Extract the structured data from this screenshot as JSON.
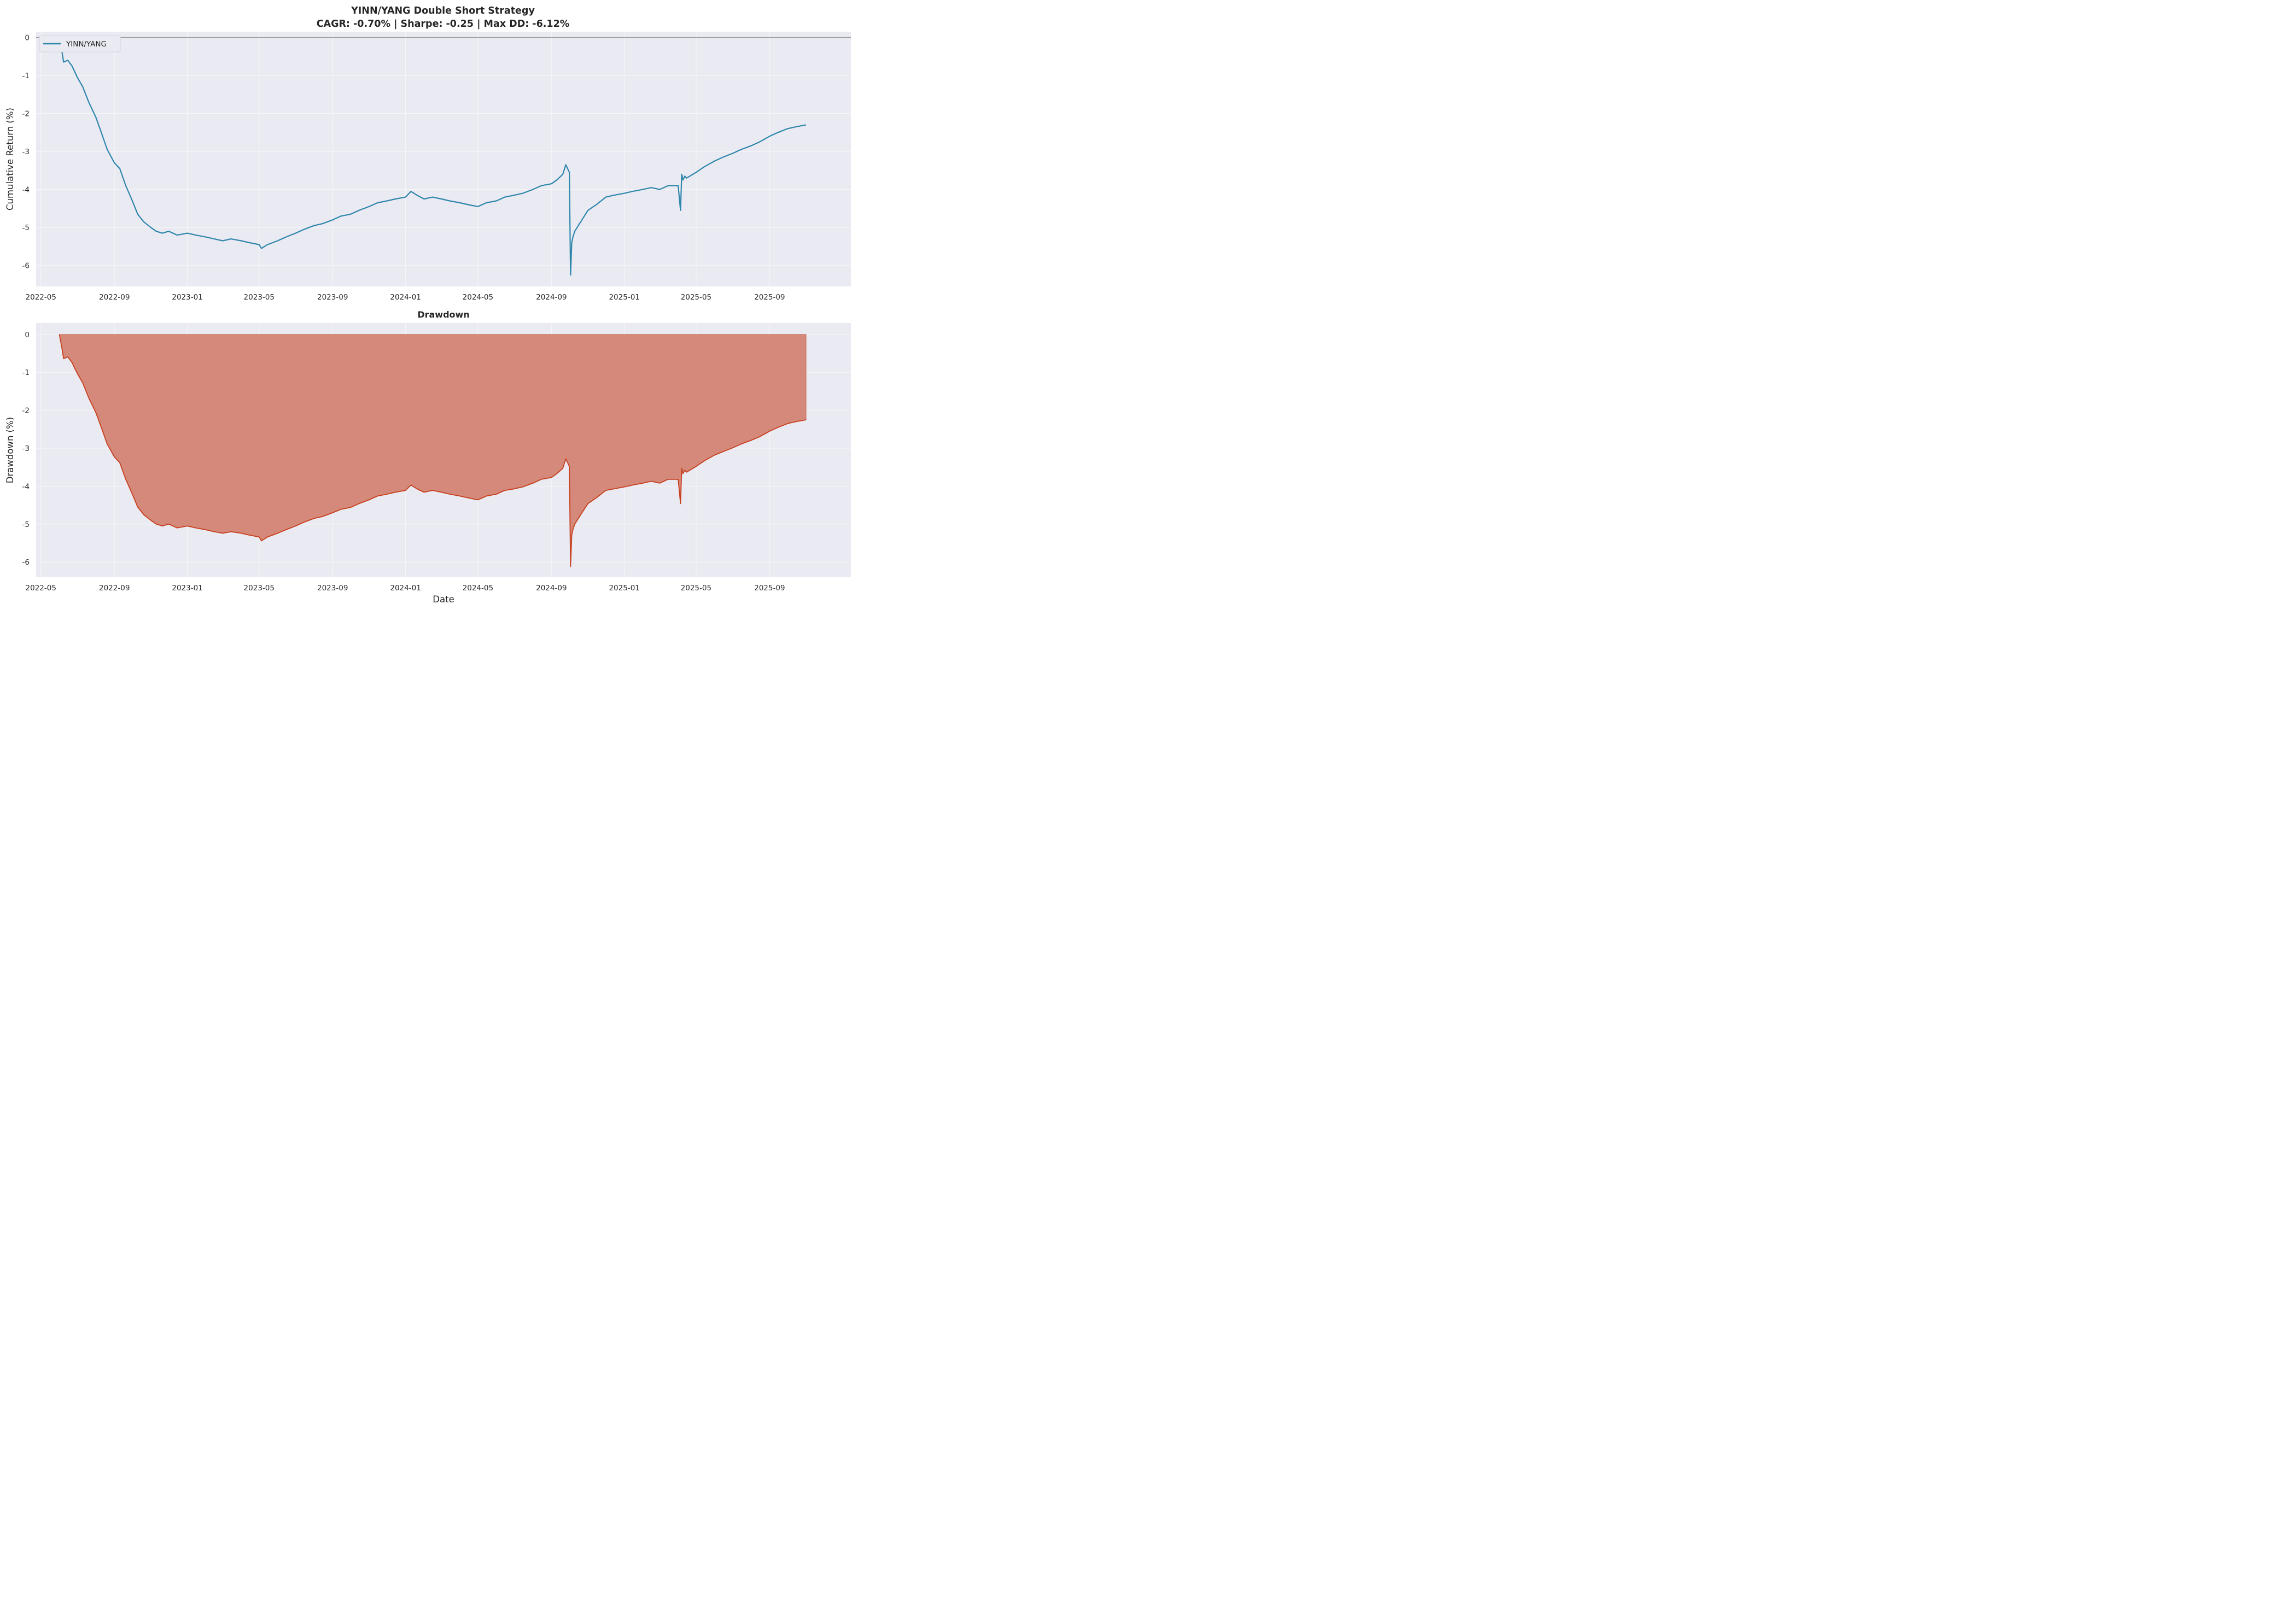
{
  "figure": {
    "title_line1": "YINN/YANG Double Short Strategy",
    "title_line2": "CAGR: -0.70% | Sharpe: -0.25 | Max DD: -6.12%"
  },
  "chart_data": [
    {
      "type": "line",
      "title": "",
      "xlabel": "",
      "ylabel": "Cumulative Return (%)",
      "ylim": [
        -6.55,
        0.15
      ],
      "xlim": [
        "2022-04-23",
        "2026-01-15"
      ],
      "x_ticks": [
        "2022-05",
        "2022-09",
        "2023-01",
        "2023-05",
        "2023-09",
        "2024-01",
        "2024-05",
        "2024-09",
        "2025-01",
        "2025-05",
        "2025-09"
      ],
      "y_ticks": [
        0,
        -1,
        -2,
        -3,
        -4,
        -5,
        -6
      ],
      "grid": true,
      "legend": {
        "position": "top-left",
        "entries": [
          "YINN/YANG"
        ]
      },
      "reference_line": 0,
      "color": "#2e86ab",
      "series": [
        {
          "name": "YINN/YANG",
          "x": [
            "2022-06-01",
            "2022-06-05",
            "2022-06-08",
            "2022-06-15",
            "2022-06-22",
            "2022-07-01",
            "2022-07-10",
            "2022-07-20",
            "2022-08-01",
            "2022-08-10",
            "2022-08-20",
            "2022-09-01",
            "2022-09-10",
            "2022-09-20",
            "2022-10-01",
            "2022-10-10",
            "2022-10-20",
            "2022-11-01",
            "2022-11-10",
            "2022-11-20",
            "2022-12-01",
            "2022-12-15",
            "2023-01-01",
            "2023-01-15",
            "2023-02-01",
            "2023-02-15",
            "2023-03-01",
            "2023-03-15",
            "2023-04-01",
            "2023-04-15",
            "2023-05-01",
            "2023-05-05",
            "2023-05-15",
            "2023-06-01",
            "2023-06-15",
            "2023-07-01",
            "2023-07-15",
            "2023-08-01",
            "2023-08-15",
            "2023-09-01",
            "2023-09-15",
            "2023-10-01",
            "2023-10-15",
            "2023-11-01",
            "2023-11-15",
            "2023-12-01",
            "2023-12-15",
            "2024-01-01",
            "2024-01-10",
            "2024-01-20",
            "2024-02-01",
            "2024-02-15",
            "2024-03-01",
            "2024-03-15",
            "2024-04-01",
            "2024-04-15",
            "2024-05-01",
            "2024-05-15",
            "2024-06-01",
            "2024-06-15",
            "2024-07-01",
            "2024-07-15",
            "2024-08-01",
            "2024-08-15",
            "2024-09-01",
            "2024-09-10",
            "2024-09-20",
            "2024-09-25",
            "2024-10-01",
            "2024-10-03",
            "2024-10-05",
            "2024-10-07",
            "2024-10-10",
            "2024-10-20",
            "2024-11-01",
            "2024-11-15",
            "2024-12-01",
            "2024-12-15",
            "2025-01-01",
            "2025-01-15",
            "2025-02-01",
            "2025-02-15",
            "2025-03-01",
            "2025-03-15",
            "2025-04-01",
            "2025-04-05",
            "2025-04-07",
            "2025-04-09",
            "2025-04-12",
            "2025-04-15",
            "2025-05-01",
            "2025-05-15",
            "2025-06-01",
            "2025-06-15",
            "2025-07-01",
            "2025-07-15",
            "2025-08-01",
            "2025-08-15",
            "2025-09-01",
            "2025-09-15",
            "2025-10-01",
            "2025-10-15",
            "2025-11-01"
          ],
          "y": [
            0.0,
            -0.35,
            -0.65,
            -0.6,
            -0.75,
            -1.05,
            -1.3,
            -1.7,
            -2.1,
            -2.5,
            -2.95,
            -3.3,
            -3.45,
            -3.9,
            -4.3,
            -4.65,
            -4.85,
            -5.0,
            -5.1,
            -5.15,
            -5.1,
            -5.2,
            -5.15,
            -5.2,
            -5.25,
            -5.3,
            -5.35,
            -5.3,
            -5.35,
            -5.4,
            -5.45,
            -5.55,
            -5.45,
            -5.35,
            -5.25,
            -5.15,
            -5.05,
            -4.95,
            -4.9,
            -4.8,
            -4.7,
            -4.65,
            -4.55,
            -4.45,
            -4.35,
            -4.3,
            -4.25,
            -4.2,
            -4.05,
            -4.15,
            -4.25,
            -4.2,
            -4.25,
            -4.3,
            -4.35,
            -4.4,
            -4.45,
            -4.35,
            -4.3,
            -4.2,
            -4.15,
            -4.1,
            -4.0,
            -3.9,
            -3.85,
            -3.75,
            -3.6,
            -3.35,
            -3.55,
            -6.25,
            -5.4,
            -5.25,
            -5.1,
            -4.85,
            -4.55,
            -4.4,
            -4.2,
            -4.15,
            -4.1,
            -4.05,
            -4.0,
            -3.95,
            -4.0,
            -3.9,
            -3.9,
            -4.55,
            -3.6,
            -3.75,
            -3.65,
            -3.7,
            -3.55,
            -3.4,
            -3.25,
            -3.15,
            -3.05,
            -2.95,
            -2.85,
            -2.75,
            -2.6,
            -2.5,
            -2.4,
            -2.35,
            -2.3
          ]
        }
      ]
    },
    {
      "type": "area",
      "title": "Drawdown",
      "xlabel": "Date",
      "ylabel": "Drawdown (%)",
      "ylim": [
        -6.4,
        0.3
      ],
      "xlim": [
        "2022-04-23",
        "2026-01-15"
      ],
      "x_ticks": [
        "2022-05",
        "2022-09",
        "2023-01",
        "2023-05",
        "2023-09",
        "2024-01",
        "2024-05",
        "2024-09",
        "2025-01",
        "2025-05",
        "2025-09"
      ],
      "y_ticks": [
        0,
        -1,
        -2,
        -3,
        -4,
        -5,
        -6
      ],
      "grid": true,
      "color": "#c73e1d",
      "fill_color": "#d4897a",
      "series": [
        {
          "name": "",
          "x": [
            "2022-06-01",
            "2022-06-05",
            "2022-06-08",
            "2022-06-15",
            "2022-06-22",
            "2022-07-01",
            "2022-07-10",
            "2022-07-20",
            "2022-08-01",
            "2022-08-10",
            "2022-08-20",
            "2022-09-01",
            "2022-09-10",
            "2022-09-20",
            "2022-10-01",
            "2022-10-10",
            "2022-10-20",
            "2022-11-01",
            "2022-11-10",
            "2022-11-20",
            "2022-12-01",
            "2022-12-15",
            "2023-01-01",
            "2023-01-15",
            "2023-02-01",
            "2023-02-15",
            "2023-03-01",
            "2023-03-15",
            "2023-04-01",
            "2023-04-15",
            "2023-05-01",
            "2023-05-05",
            "2023-05-15",
            "2023-06-01",
            "2023-06-15",
            "2023-07-01",
            "2023-07-15",
            "2023-08-01",
            "2023-08-15",
            "2023-09-01",
            "2023-09-15",
            "2023-10-01",
            "2023-10-15",
            "2023-11-01",
            "2023-11-15",
            "2023-12-01",
            "2023-12-15",
            "2024-01-01",
            "2024-01-10",
            "2024-01-20",
            "2024-02-01",
            "2024-02-15",
            "2024-03-01",
            "2024-03-15",
            "2024-04-01",
            "2024-04-15",
            "2024-05-01",
            "2024-05-15",
            "2024-06-01",
            "2024-06-15",
            "2024-07-01",
            "2024-07-15",
            "2024-08-01",
            "2024-08-15",
            "2024-09-01",
            "2024-09-10",
            "2024-09-20",
            "2024-09-25",
            "2024-10-01",
            "2024-10-03",
            "2024-10-05",
            "2024-10-07",
            "2024-10-10",
            "2024-10-20",
            "2024-11-01",
            "2024-11-15",
            "2024-12-01",
            "2024-12-15",
            "2025-01-01",
            "2025-01-15",
            "2025-02-01",
            "2025-02-15",
            "2025-03-01",
            "2025-03-15",
            "2025-04-01",
            "2025-04-05",
            "2025-04-07",
            "2025-04-09",
            "2025-04-12",
            "2025-04-15",
            "2025-05-01",
            "2025-05-15",
            "2025-06-01",
            "2025-06-15",
            "2025-07-01",
            "2025-07-15",
            "2025-08-01",
            "2025-08-15",
            "2025-09-01",
            "2025-09-15",
            "2025-10-01",
            "2025-10-15",
            "2025-11-01"
          ],
          "y": [
            0.0,
            -0.34,
            -0.64,
            -0.59,
            -0.74,
            -1.03,
            -1.28,
            -1.67,
            -2.06,
            -2.45,
            -2.89,
            -3.23,
            -3.38,
            -3.82,
            -4.21,
            -4.55,
            -4.75,
            -4.9,
            -5.0,
            -5.05,
            -5.0,
            -5.1,
            -5.05,
            -5.1,
            -5.15,
            -5.2,
            -5.24,
            -5.2,
            -5.24,
            -5.29,
            -5.34,
            -5.44,
            -5.34,
            -5.24,
            -5.15,
            -5.05,
            -4.95,
            -4.85,
            -4.8,
            -4.7,
            -4.61,
            -4.56,
            -4.46,
            -4.36,
            -4.26,
            -4.21,
            -4.16,
            -4.11,
            -3.97,
            -4.07,
            -4.16,
            -4.11,
            -4.16,
            -4.21,
            -4.26,
            -4.31,
            -4.36,
            -4.26,
            -4.21,
            -4.11,
            -4.07,
            -4.02,
            -3.92,
            -3.82,
            -3.77,
            -3.67,
            -3.53,
            -3.28,
            -3.48,
            -6.12,
            -5.29,
            -5.14,
            -5.0,
            -4.75,
            -4.46,
            -4.31,
            -4.11,
            -4.07,
            -4.02,
            -3.97,
            -3.92,
            -3.87,
            -3.92,
            -3.82,
            -3.82,
            -4.46,
            -3.53,
            -3.67,
            -3.58,
            -3.63,
            -3.48,
            -3.33,
            -3.18,
            -3.09,
            -2.99,
            -2.89,
            -2.79,
            -2.7,
            -2.55,
            -2.45,
            -2.35,
            -2.3,
            -2.25
          ]
        }
      ]
    }
  ]
}
